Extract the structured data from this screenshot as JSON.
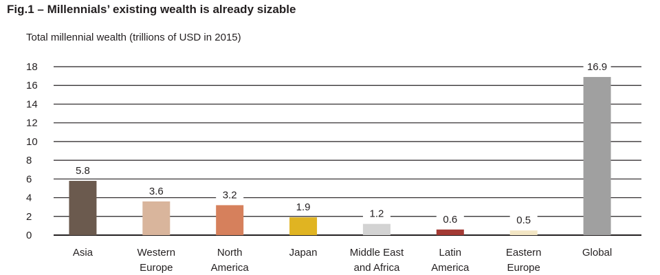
{
  "chart_data": {
    "type": "bar",
    "title": "Fig.1 – Millennials’ existing wealth is already sizable",
    "subtitle": "Total millennial wealth (trillions of USD in 2015)",
    "categories": [
      [
        "Asia"
      ],
      [
        "Western",
        "Europe"
      ],
      [
        "North",
        "America"
      ],
      [
        "Japan"
      ],
      [
        "Middle East",
        "and Africa"
      ],
      [
        "Latin",
        "America"
      ],
      [
        "Eastern",
        "Europe"
      ],
      [
        "Global"
      ]
    ],
    "values": [
      5.8,
      3.6,
      3.2,
      1.9,
      1.2,
      0.6,
      0.5,
      16.9
    ],
    "value_labels": [
      "5.8",
      "3.6",
      "3.2",
      "1.9",
      "1.2",
      "0.6",
      "0.5",
      "16.9"
    ],
    "colors": [
      "#6b5a4e",
      "#d9b59c",
      "#d6805c",
      "#e0b422",
      "#d3d3d3",
      "#a33a34",
      "#f3e6c4",
      "#a0a0a0"
    ],
    "y_ticks": [
      "0",
      "2",
      "4",
      "6",
      "8",
      "10",
      "12",
      "14",
      "16",
      "18"
    ],
    "ylim": [
      0,
      18
    ],
    "grid": true,
    "xlabel": "",
    "ylabel": ""
  }
}
